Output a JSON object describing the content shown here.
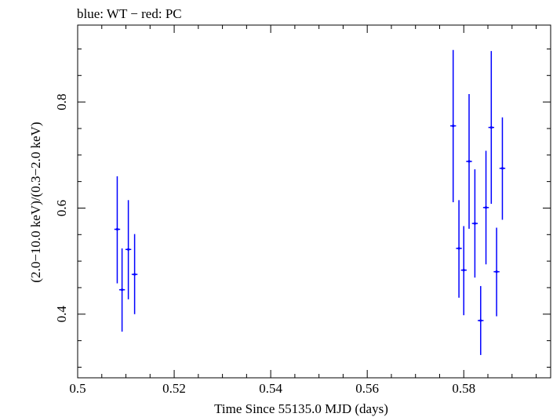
{
  "chart_data": {
    "type": "scatter",
    "title": "blue: WT − red: PC",
    "xlabel": "Time Since 55135.0 MJD (days)",
    "ylabel": "(2.0−10.0 keV)/(0.3−2.0 keV)",
    "xlim": [
      0.5,
      0.598
    ],
    "ylim": [
      0.28,
      0.945
    ],
    "x_ticks": [
      0.5,
      0.52,
      0.54,
      0.56,
      0.58
    ],
    "x_tick_labels": [
      "0.5",
      "0.52",
      "0.54",
      "0.56",
      "0.58"
    ],
    "y_ticks": [
      0.4,
      0.6,
      0.8
    ],
    "y_tick_labels": [
      "0.4",
      "0.6",
      "0.8"
    ],
    "grid": false,
    "series": [
      {
        "color": "#0000ff",
        "points": [
          {
            "x": 0.5082,
            "y": 0.56,
            "ylo": 0.458,
            "yhi": 0.66,
            "xerr": 0.0006
          },
          {
            "x": 0.5092,
            "y": 0.446,
            "ylo": 0.367,
            "yhi": 0.524,
            "xerr": 0.0006
          },
          {
            "x": 0.5105,
            "y": 0.522,
            "ylo": 0.428,
            "yhi": 0.615,
            "xerr": 0.0006
          },
          {
            "x": 0.5118,
            "y": 0.475,
            "ylo": 0.4,
            "yhi": 0.551,
            "xerr": 0.0006
          },
          {
            "x": 0.5778,
            "y": 0.755,
            "ylo": 0.611,
            "yhi": 0.898,
            "xerr": 0.0006
          },
          {
            "x": 0.579,
            "y": 0.524,
            "ylo": 0.431,
            "yhi": 0.615,
            "xerr": 0.0006
          },
          {
            "x": 0.58,
            "y": 0.483,
            "ylo": 0.398,
            "yhi": 0.566,
            "xerr": 0.0006
          },
          {
            "x": 0.5811,
            "y": 0.688,
            "ylo": 0.561,
            "yhi": 0.815,
            "xerr": 0.0006
          },
          {
            "x": 0.5823,
            "y": 0.571,
            "ylo": 0.469,
            "yhi": 0.673,
            "xerr": 0.0006
          },
          {
            "x": 0.5835,
            "y": 0.388,
            "ylo": 0.323,
            "yhi": 0.453,
            "xerr": 0.0006
          },
          {
            "x": 0.5846,
            "y": 0.601,
            "ylo": 0.494,
            "yhi": 0.708,
            "xerr": 0.0006
          },
          {
            "x": 0.5857,
            "y": 0.752,
            "ylo": 0.608,
            "yhi": 0.896,
            "xerr": 0.0006
          },
          {
            "x": 0.5868,
            "y": 0.48,
            "ylo": 0.396,
            "yhi": 0.563,
            "xerr": 0.0006
          },
          {
            "x": 0.588,
            "y": 0.675,
            "ylo": 0.578,
            "yhi": 0.771,
            "xerr": 0.0006
          }
        ]
      }
    ]
  }
}
